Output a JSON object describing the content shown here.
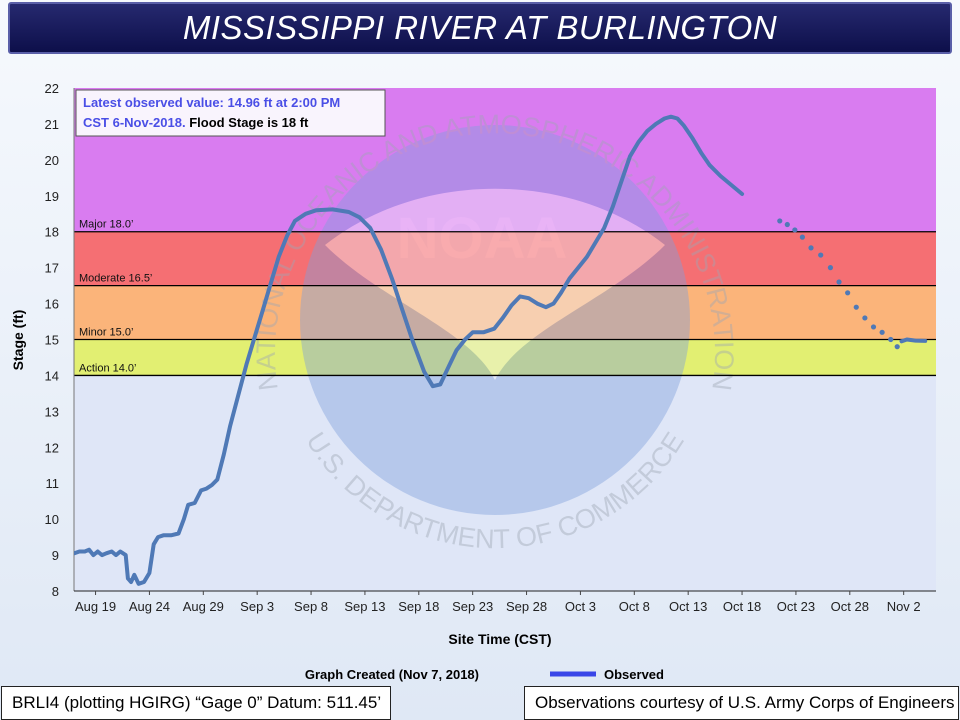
{
  "title": "MISSISSIPPI RIVER AT BURLINGTON",
  "annotation": {
    "line1": "Latest observed value: 14.96 ft at 2:00 PM",
    "line2a": "CST 6-Nov-2018.",
    "line2b": " Flood Stage is 18 ft"
  },
  "graph_created": "Graph Created (Nov 7, 2018)",
  "legend_observed": "Observed",
  "footer_left": "BRLI4 (plotting HGIRG) “Gage 0” Datum: 511.45’",
  "footer_right": "Observations courtesy of U.S. Army Corps of Engineers",
  "watermark": {
    "logo": "NOAA",
    "top_text": "NATIONAL OCEANIC AND ATMOSPHERIC ADMINISTRATION",
    "bottom_text": "U.S. DEPARTMENT OF COMMERCE"
  },
  "colors": {
    "major": "#d97cf0",
    "moderate": "#f56f73",
    "minor": "#fbb47a",
    "action": "#e2ef72",
    "normal": "#dfe6f7",
    "line": "#4f79b6",
    "legend_line": "#3a46e8",
    "annotation_blue": "#4a4ee6"
  },
  "chart_data": {
    "type": "line",
    "xlabel": "Site Time (CST)",
    "ylabel": "Stage (ft)",
    "ylim": [
      8,
      22
    ],
    "yticks": [
      8,
      9,
      10,
      11,
      12,
      13,
      14,
      15,
      16,
      17,
      18,
      19,
      20,
      21,
      22
    ],
    "xlim": [
      0,
      80
    ],
    "xticks": [
      {
        "day": 2,
        "label": "Aug 19"
      },
      {
        "day": 7,
        "label": "Aug 24"
      },
      {
        "day": 12,
        "label": "Aug 29"
      },
      {
        "day": 17,
        "label": "Sep 3"
      },
      {
        "day": 22,
        "label": "Sep 8"
      },
      {
        "day": 27,
        "label": "Sep 13"
      },
      {
        "day": 32,
        "label": "Sep 18"
      },
      {
        "day": 37,
        "label": "Sep 23"
      },
      {
        "day": 42,
        "label": "Sep 28"
      },
      {
        "day": 47,
        "label": "Oct 3"
      },
      {
        "day": 52,
        "label": "Oct 8"
      },
      {
        "day": 57,
        "label": "Oct 13"
      },
      {
        "day": 62,
        "label": "Oct 18"
      },
      {
        "day": 67,
        "label": "Oct 23"
      },
      {
        "day": 72,
        "label": "Oct 28"
      },
      {
        "day": 77,
        "label": "Nov 2"
      }
    ],
    "x_units": "days since Aug 17, 2018",
    "flood_categories": [
      {
        "name": "Major",
        "label": "Major 18.0’",
        "from": 18.0,
        "to": 22.0
      },
      {
        "name": "Moderate",
        "label": "Moderate 16.5’",
        "from": 16.5,
        "to": 18.0
      },
      {
        "name": "Minor",
        "label": "Minor 15.0’",
        "from": 15.0,
        "to": 16.5
      },
      {
        "name": "Action",
        "label": "Action 14.0’",
        "from": 14.0,
        "to": 15.0
      }
    ],
    "series": [
      {
        "name": "Observed",
        "solid_segments": [
          [
            [
              0,
              9.05
            ],
            [
              0.5,
              9.1
            ],
            [
              1,
              9.1
            ],
            [
              1.4,
              9.15
            ],
            [
              1.8,
              9.0
            ],
            [
              2.2,
              9.1
            ],
            [
              2.6,
              9.0
            ],
            [
              3,
              9.05
            ],
            [
              3.5,
              9.1
            ],
            [
              3.9,
              9.0
            ],
            [
              4.3,
              9.1
            ],
            [
              4.8,
              9.0
            ],
            [
              5,
              8.35
            ],
            [
              5.3,
              8.25
            ],
            [
              5.6,
              8.45
            ],
            [
              6,
              8.2
            ],
            [
              6.5,
              8.25
            ],
            [
              7,
              8.5
            ],
            [
              7.4,
              9.3
            ],
            [
              7.8,
              9.5
            ],
            [
              8.3,
              9.55
            ],
            [
              9,
              9.55
            ],
            [
              9.7,
              9.6
            ],
            [
              10.2,
              10.0
            ],
            [
              10.6,
              10.4
            ],
            [
              11.2,
              10.45
            ],
            [
              11.8,
              10.8
            ],
            [
              12.3,
              10.85
            ],
            [
              12.8,
              10.95
            ],
            [
              13.3,
              11.1
            ],
            [
              13.9,
              11.8
            ],
            [
              14.5,
              12.6
            ],
            [
              15.2,
              13.4
            ],
            [
              16,
              14.3
            ],
            [
              16.8,
              15.1
            ],
            [
              17.5,
              15.8
            ],
            [
              18.2,
              16.5
            ],
            [
              19,
              17.3
            ],
            [
              19.8,
              17.9
            ],
            [
              20.5,
              18.3
            ],
            [
              21,
              18.4
            ],
            [
              21.5,
              18.5
            ],
            [
              22.5,
              18.6
            ],
            [
              24,
              18.62
            ],
            [
              25.5,
              18.55
            ],
            [
              26.5,
              18.4
            ],
            [
              27.5,
              18.1
            ],
            [
              28.5,
              17.5
            ],
            [
              29.5,
              16.7
            ],
            [
              30.5,
              15.8
            ],
            [
              31.5,
              14.9
            ],
            [
              32.5,
              14.1
            ],
            [
              33.3,
              13.7
            ],
            [
              34,
              13.75
            ],
            [
              34.7,
              14.2
            ],
            [
              35.5,
              14.7
            ],
            [
              36.3,
              15.0
            ],
            [
              37,
              15.2
            ],
            [
              38,
              15.2
            ],
            [
              39,
              15.3
            ],
            [
              39.8,
              15.6
            ],
            [
              40.6,
              15.95
            ],
            [
              41.4,
              16.2
            ],
            [
              42.2,
              16.15
            ],
            [
              43,
              16.0
            ],
            [
              43.8,
              15.9
            ],
            [
              44.5,
              16.0
            ],
            [
              45.2,
              16.3
            ],
            [
              46,
              16.7
            ],
            [
              46.8,
              17.0
            ],
            [
              47.6,
              17.3
            ],
            [
              48.4,
              17.7
            ],
            [
              49.2,
              18.1
            ],
            [
              50,
              18.7
            ],
            [
              50.8,
              19.4
            ],
            [
              51.6,
              20.1
            ],
            [
              52.4,
              20.5
            ],
            [
              53.2,
              20.8
            ],
            [
              54,
              21.0
            ],
            [
              54.8,
              21.15
            ],
            [
              55.4,
              21.2
            ],
            [
              56,
              21.15
            ],
            [
              56.6,
              20.95
            ],
            [
              57.4,
              20.6
            ],
            [
              58.2,
              20.2
            ],
            [
              59,
              19.85
            ],
            [
              60,
              19.55
            ],
            [
              61,
              19.3
            ],
            [
              62,
              19.05
            ]
          ],
          [
            [
              76.8,
              14.95
            ],
            [
              77.3,
              15.0
            ],
            [
              78.1,
              14.97
            ],
            [
              79,
              14.96
            ]
          ]
        ],
        "forecast_points": [
          [
            65.5,
            18.3
          ],
          [
            66.2,
            18.2
          ],
          [
            66.9,
            18.05
          ],
          [
            67.6,
            17.85
          ],
          [
            68.4,
            17.55
          ],
          [
            69.3,
            17.35
          ],
          [
            70.2,
            17.0
          ],
          [
            71,
            16.6
          ],
          [
            71.8,
            16.3
          ],
          [
            72.6,
            15.9
          ],
          [
            73.4,
            15.6
          ],
          [
            74.2,
            15.35
          ],
          [
            75,
            15.2
          ],
          [
            75.8,
            15.0
          ],
          [
            76.4,
            14.8
          ]
        ]
      }
    ]
  }
}
